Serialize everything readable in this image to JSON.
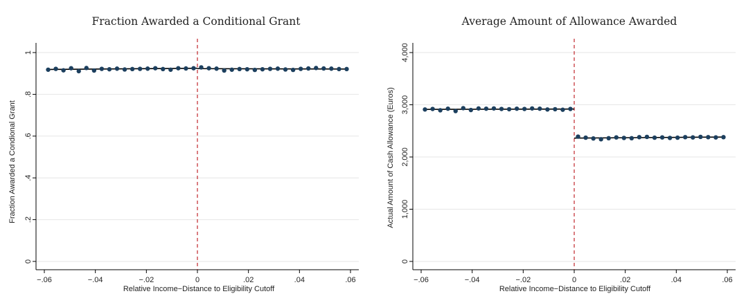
{
  "chart_data": [
    {
      "type": "scatter",
      "title": "Fraction Awarded a Conditional Grant",
      "xlabel": "Relative Income−Distance to Eligibility Cutoff",
      "ylabel": "Fraction Awarded a Condional Grant",
      "xlim": [
        -0.06,
        0.06
      ],
      "ylim": [
        0,
        1
      ],
      "xticks": [
        -0.06,
        -0.04,
        -0.02,
        0,
        0.02,
        0.04,
        0.06
      ],
      "xtick_labels": [
        "−.06",
        "−.04",
        "−.02",
        "0",
        ".02",
        ".04",
        ".06"
      ],
      "yticks": [
        0,
        0.2,
        0.4,
        0.6,
        0.8,
        1
      ],
      "ytick_labels": [
        "0",
        ".2",
        ".4",
        ".6",
        ".8",
        "1"
      ],
      "grid": true,
      "cutoff": 0,
      "colors": {
        "points": "#1c3f5e",
        "fit": "#000000",
        "cutoff": "#c0262b",
        "grid": "#e6e6e6"
      },
      "x": [
        -0.0585,
        -0.0555,
        -0.0525,
        -0.0495,
        -0.0465,
        -0.0435,
        -0.0405,
        -0.0375,
        -0.0345,
        -0.0315,
        -0.0285,
        -0.0255,
        -0.0225,
        -0.0195,
        -0.0165,
        -0.0135,
        -0.0105,
        -0.0075,
        -0.0045,
        -0.0015,
        0.0015,
        0.0045,
        0.0075,
        0.0105,
        0.0135,
        0.0165,
        0.0195,
        0.0225,
        0.0255,
        0.0285,
        0.0315,
        0.0345,
        0.0375,
        0.0405,
        0.0435,
        0.0465,
        0.0495,
        0.0525,
        0.0555,
        0.0585
      ],
      "y": [
        0.918,
        0.922,
        0.915,
        0.925,
        0.911,
        0.926,
        0.914,
        0.922,
        0.92,
        0.923,
        0.919,
        0.921,
        0.922,
        0.923,
        0.925,
        0.921,
        0.918,
        0.925,
        0.924,
        0.925,
        0.929,
        0.925,
        0.923,
        0.914,
        0.918,
        0.921,
        0.92,
        0.917,
        0.92,
        0.922,
        0.923,
        0.919,
        0.917,
        0.922,
        0.924,
        0.926,
        0.924,
        0.923,
        0.921,
        0.921
      ],
      "fit_left": [
        [
          -0.0585,
          0.919
        ],
        [
          0,
          0.925
        ]
      ],
      "fit_right": [
        [
          0,
          0.923
        ],
        [
          0.0585,
          0.921
        ]
      ]
    },
    {
      "type": "scatter",
      "title": "Average Amount of Allowance Awarded",
      "xlabel": "Relative Income−Distance to Eligibility Cutoff",
      "ylabel": "Actual Amount of Cash Allowance (Euros)",
      "xlim": [
        -0.06,
        0.06
      ],
      "ylim": [
        0,
        4000
      ],
      "xticks": [
        -0.06,
        -0.04,
        -0.02,
        0,
        0.02,
        0.04,
        0.06
      ],
      "xtick_labels": [
        "−.06",
        "−.04",
        "−.02",
        "0",
        ".02",
        ".04",
        ".06"
      ],
      "yticks": [
        0,
        1000,
        2000,
        3000,
        4000
      ],
      "ytick_labels": [
        "0",
        "1,000",
        "2,000",
        "3,000",
        "4,000"
      ],
      "grid": true,
      "cutoff": 0,
      "colors": {
        "points": "#1c3f5e",
        "fit": "#000000",
        "cutoff": "#c0262b",
        "grid": "#e6e6e6"
      },
      "x": [
        -0.0585,
        -0.0555,
        -0.0525,
        -0.0495,
        -0.0465,
        -0.0435,
        -0.0405,
        -0.0375,
        -0.0345,
        -0.0315,
        -0.0285,
        -0.0255,
        -0.0225,
        -0.0195,
        -0.0165,
        -0.0135,
        -0.0105,
        -0.0075,
        -0.0045,
        -0.0015,
        0.0015,
        0.0045,
        0.0075,
        0.0105,
        0.0135,
        0.0165,
        0.0195,
        0.0225,
        0.0255,
        0.0285,
        0.0315,
        0.0345,
        0.0375,
        0.0405,
        0.0435,
        0.0465,
        0.0495,
        0.0525,
        0.0555,
        0.0585
      ],
      "y": [
        2910,
        2920,
        2895,
        2925,
        2880,
        2935,
        2900,
        2930,
        2925,
        2930,
        2920,
        2915,
        2925,
        2920,
        2930,
        2925,
        2910,
        2915,
        2905,
        2920,
        2390,
        2370,
        2355,
        2340,
        2360,
        2375,
        2365,
        2360,
        2380,
        2385,
        2370,
        2375,
        2365,
        2370,
        2380,
        2375,
        2385,
        2380,
        2375,
        2380
      ],
      "fit_left": [
        [
          -0.0585,
          2912
        ],
        [
          0,
          2918
        ]
      ],
      "fit_right": [
        [
          0,
          2362
        ],
        [
          0.0585,
          2382
        ]
      ]
    }
  ]
}
